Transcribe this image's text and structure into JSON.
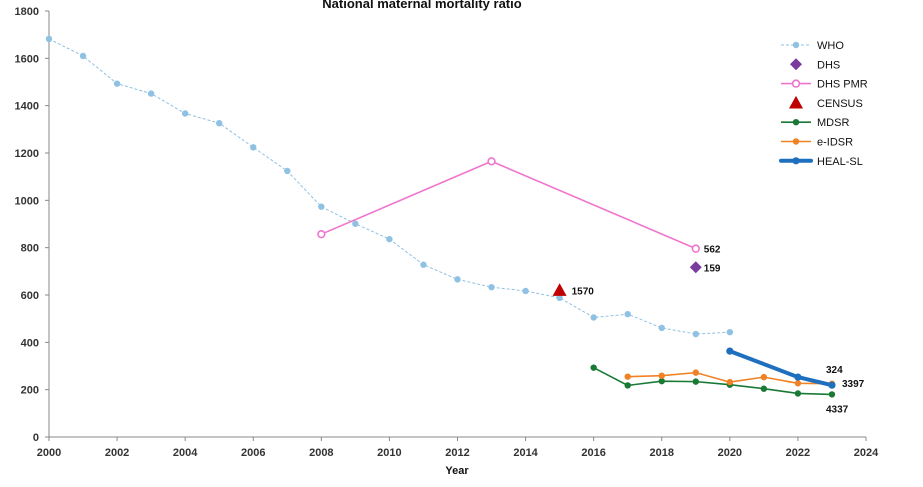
{
  "chart_data": {
    "type": "line",
    "title": "National maternal mortality ratio",
    "xlabel": "Year",
    "ylabel": "",
    "xlim": [
      2000,
      2024
    ],
    "ylim": [
      0,
      1800
    ],
    "xticks": [
      2000,
      2002,
      2004,
      2006,
      2008,
      2010,
      2012,
      2014,
      2016,
      2018,
      2020,
      2022,
      2024
    ],
    "yticks": [
      0,
      200,
      400,
      600,
      800,
      1000,
      1200,
      1400,
      1600,
      1800
    ],
    "legend_position": "top-right",
    "series": [
      {
        "name": "WHO",
        "color": "#8fc1e3",
        "style": "dashed",
        "marker": "circle",
        "x": [
          2000,
          2001,
          2002,
          2003,
          2004,
          2005,
          2006,
          2007,
          2008,
          2009,
          2010,
          2011,
          2012,
          2013,
          2014,
          2015,
          2016,
          2017,
          2018,
          2019,
          2020
        ],
        "y": [
          1682,
          1610,
          1493,
          1451,
          1367,
          1326,
          1224,
          1124,
          973,
          901,
          836,
          728,
          666,
          633,
          617,
          588,
          505,
          519,
          461,
          435,
          443
        ]
      },
      {
        "name": "DHS",
        "color": "#7a3b9e",
        "style": "none",
        "marker": "diamond",
        "x": [
          2019
        ],
        "y": [
          717
        ],
        "labels": [
          "159"
        ]
      },
      {
        "name": "DHS PMR",
        "color": "#f075cd",
        "style": "solid",
        "marker": "circle-open",
        "x": [
          2008,
          2013,
          2019
        ],
        "y": [
          857,
          1165,
          796
        ],
        "labels": [
          "",
          "",
          "562"
        ]
      },
      {
        "name": "CENSUS",
        "color": "#c00000",
        "style": "none",
        "marker": "triangle",
        "x": [
          2015
        ],
        "y": [
          620
        ],
        "labels": [
          "1570"
        ]
      },
      {
        "name": "MDSR",
        "color": "#1a7a35",
        "style": "solid",
        "marker": "circle",
        "x": [
          2016,
          2017,
          2018,
          2019,
          2020,
          2021,
          2022,
          2023
        ],
        "y": [
          293,
          218,
          236,
          234,
          221,
          204,
          184,
          180
        ],
        "labels": [
          "",
          "",
          "",
          "",
          "",
          "",
          "",
          "4337"
        ]
      },
      {
        "name": "e-IDSR",
        "color": "#f08124",
        "style": "solid",
        "marker": "circle",
        "x": [
          2017,
          2018,
          2019,
          2020,
          2021,
          2022,
          2023
        ],
        "y": [
          255,
          259,
          272,
          232,
          253,
          227,
          225
        ],
        "labels": [
          "",
          "",
          "",
          "",
          "",
          "",
          "3397"
        ]
      },
      {
        "name": "HEAL-SL",
        "color": "#1f6fbf",
        "style": "thick",
        "marker": "circle",
        "x": [
          2020,
          2022,
          2023
        ],
        "y": [
          363,
          253,
          219
        ],
        "labels": [
          "",
          "",
          "324"
        ]
      }
    ]
  }
}
